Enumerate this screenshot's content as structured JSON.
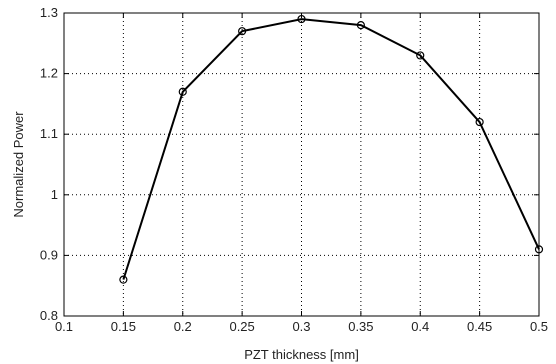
{
  "chart_data": {
    "type": "line",
    "title": "",
    "xlabel": "PZT thickness [mm]",
    "ylabel": "Normalized Power",
    "xlim": [
      0.1,
      0.5
    ],
    "ylim": [
      0.8,
      1.3
    ],
    "xticks": [
      0.1,
      0.15,
      0.2,
      0.25,
      0.3,
      0.35,
      0.4,
      0.45,
      0.5
    ],
    "yticks": [
      0.8,
      0.9,
      1,
      1.1,
      1.2,
      1.3
    ],
    "xtick_labels": [
      "0.1",
      "0.15",
      "0.2",
      "0.25",
      "0.3",
      "0.35",
      "0.4",
      "0.45",
      "0.5"
    ],
    "ytick_labels": [
      "0.8",
      "0.9",
      "1",
      "1.1",
      "1.2",
      "1.3"
    ],
    "grid": true,
    "series": [
      {
        "x": [
          0.15,
          0.2,
          0.25,
          0.3,
          0.35,
          0.4,
          0.45,
          0.5
        ],
        "y": [
          0.86,
          1.17,
          1.27,
          1.29,
          1.28,
          1.23,
          1.12,
          0.91
        ],
        "marker": "circle",
        "color": "#000000"
      }
    ]
  }
}
